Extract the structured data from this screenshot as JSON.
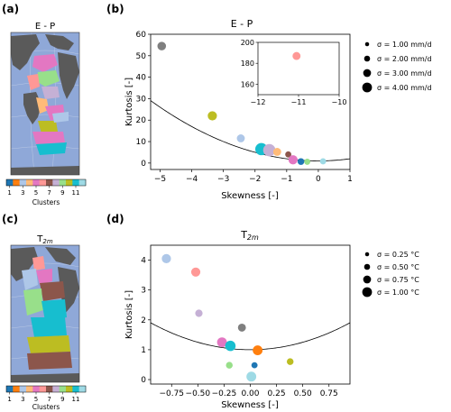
{
  "panels": {
    "a": {
      "label": "(a)",
      "map_title": "E - P",
      "colorbar_ticks": [
        "1",
        "3",
        "5",
        "7",
        "9",
        "11"
      ],
      "colorbar_label": "Clusters"
    },
    "b": {
      "label": "(b)"
    },
    "c": {
      "label": "(c)",
      "map_title": "T",
      "map_title_sub": "2m",
      "colorbar_ticks": [
        "1",
        "3",
        "5",
        "7",
        "9",
        "11"
      ],
      "colorbar_label": "Clusters"
    },
    "d": {
      "label": "(d)"
    }
  },
  "colors": {
    "ocean": "#8fa8d8",
    "land": "#5a5a5a",
    "curve": "#000000"
  },
  "clusters": [
    {
      "id": 1,
      "color": "#1f77b4"
    },
    {
      "id": 2,
      "color": "#ff7f0e"
    },
    {
      "id": 3,
      "color": "#aec7e8"
    },
    {
      "id": 4,
      "color": "#ffbb78"
    },
    {
      "id": 5,
      "color": "#e377c2"
    },
    {
      "id": 6,
      "color": "#ff9896"
    },
    {
      "id": 7,
      "color": "#8c564b"
    },
    {
      "id": 8,
      "color": "#c5b0d5"
    },
    {
      "id": 9,
      "color": "#98df8a"
    },
    {
      "id": 10,
      "color": "#bcbd22"
    },
    {
      "id": 11,
      "color": "#17becf"
    },
    {
      "id": 12,
      "color": "#9edae5"
    }
  ],
  "chart_data": [
    {
      "id": "b",
      "type": "scatter",
      "title": "E - P",
      "xlabel": "Skewness [-]",
      "ylabel": "Kurtosis [-]",
      "xlim": [
        -5.3,
        1.0
      ],
      "ylim": [
        -3,
        60
      ],
      "xticks": [
        -5,
        -4,
        -3,
        -2,
        -1,
        0,
        1
      ],
      "yticks": [
        0,
        10,
        20,
        30,
        40,
        50,
        60
      ],
      "curve": "kurtosis = skewness^2 + 1",
      "points": [
        {
          "x": -4.95,
          "y": 54.5,
          "color": "#7f7f7f",
          "size": 2.8
        },
        {
          "x": -3.35,
          "y": 22.0,
          "color": "#bcbd22",
          "size": 3.0
        },
        {
          "x": -2.45,
          "y": 11.5,
          "color": "#aec7e8",
          "size": 2.6
        },
        {
          "x": -1.8,
          "y": 6.5,
          "color": "#17becf",
          "size": 4.0
        },
        {
          "x": -1.55,
          "y": 6.0,
          "color": "#c5b0d5",
          "size": 4.0
        },
        {
          "x": -1.3,
          "y": 5.2,
          "color": "#ffbb78",
          "size": 2.6
        },
        {
          "x": -0.95,
          "y": 4.0,
          "color": "#8c564b",
          "size": 2.0
        },
        {
          "x": -0.8,
          "y": 1.5,
          "color": "#e377c2",
          "size": 3.0
        },
        {
          "x": -0.55,
          "y": 0.7,
          "color": "#1f77b4",
          "size": 2.2
        },
        {
          "x": -0.35,
          "y": 0.6,
          "color": "#98df8a",
          "size": 2.0
        },
        {
          "x": 0.15,
          "y": 0.8,
          "color": "#9edae5",
          "size": 2.0
        }
      ],
      "inset": {
        "xlim": [
          -12,
          -10
        ],
        "ylim": [
          150,
          200
        ],
        "xticks": [
          -12,
          -11,
          -10
        ],
        "yticks": [
          160,
          180,
          200
        ],
        "points": [
          {
            "x": -11.05,
            "y": 187,
            "color": "#ff9896",
            "size": 2.6
          }
        ]
      },
      "legend": {
        "placement": "right",
        "entries": [
          "σ = 1.00 mm/d",
          "σ = 2.00 mm/d",
          "σ = 3.00 mm/d",
          "σ = 4.00 mm/d"
        ],
        "sizes": [
          1,
          2,
          3,
          4
        ]
      }
    },
    {
      "id": "d",
      "type": "scatter",
      "title": "T",
      "title_sub": "2m",
      "xlabel": "Skewness [-]",
      "ylabel": "Kurtosis [-]",
      "xlim": [
        -0.95,
        0.95
      ],
      "ylim": [
        -0.15,
        4.5
      ],
      "xticks": [
        -0.75,
        -0.5,
        -0.25,
        0.0,
        0.25,
        0.5,
        0.75
      ],
      "xticklabels": [
        "−0.75",
        "−0.50",
        "−0.25",
        "0.00",
        "0.25",
        "0.50",
        "0.75"
      ],
      "yticks": [
        0,
        1,
        2,
        3,
        4
      ],
      "curve": "kurtosis = skewness^2 + 1",
      "points": [
        {
          "x": -0.8,
          "y": 4.05,
          "color": "#aec7e8",
          "size": 3.0
        },
        {
          "x": -0.52,
          "y": 3.6,
          "color": "#ff9896",
          "size": 3.0
        },
        {
          "x": -0.49,
          "y": 2.22,
          "color": "#c5b0d5",
          "size": 2.4
        },
        {
          "x": -0.08,
          "y": 1.74,
          "color": "#7f7f7f",
          "size": 2.6
        },
        {
          "x": -0.27,
          "y": 1.25,
          "color": "#e377c2",
          "size": 3.2
        },
        {
          "x": -0.19,
          "y": 1.13,
          "color": "#17becf",
          "size": 3.4
        },
        {
          "x": 0.07,
          "y": 0.98,
          "color": "#ff7f0e",
          "size": 3.2
        },
        {
          "x": 0.38,
          "y": 0.6,
          "color": "#bcbd22",
          "size": 2.2
        },
        {
          "x": -0.2,
          "y": 0.48,
          "color": "#98df8a",
          "size": 2.2
        },
        {
          "x": 0.04,
          "y": 0.48,
          "color": "#1f77b4",
          "size": 2.0
        },
        {
          "x": 0.01,
          "y": 0.1,
          "color": "#9edae5",
          "size": 3.2
        }
      ],
      "legend": {
        "placement": "right",
        "entries": [
          "σ = 0.25 °C",
          "σ = 0.50 °C",
          "σ = 0.75 °C",
          "σ = 1.00 °C"
        ],
        "sizes": [
          1,
          2,
          3,
          4
        ]
      }
    }
  ]
}
